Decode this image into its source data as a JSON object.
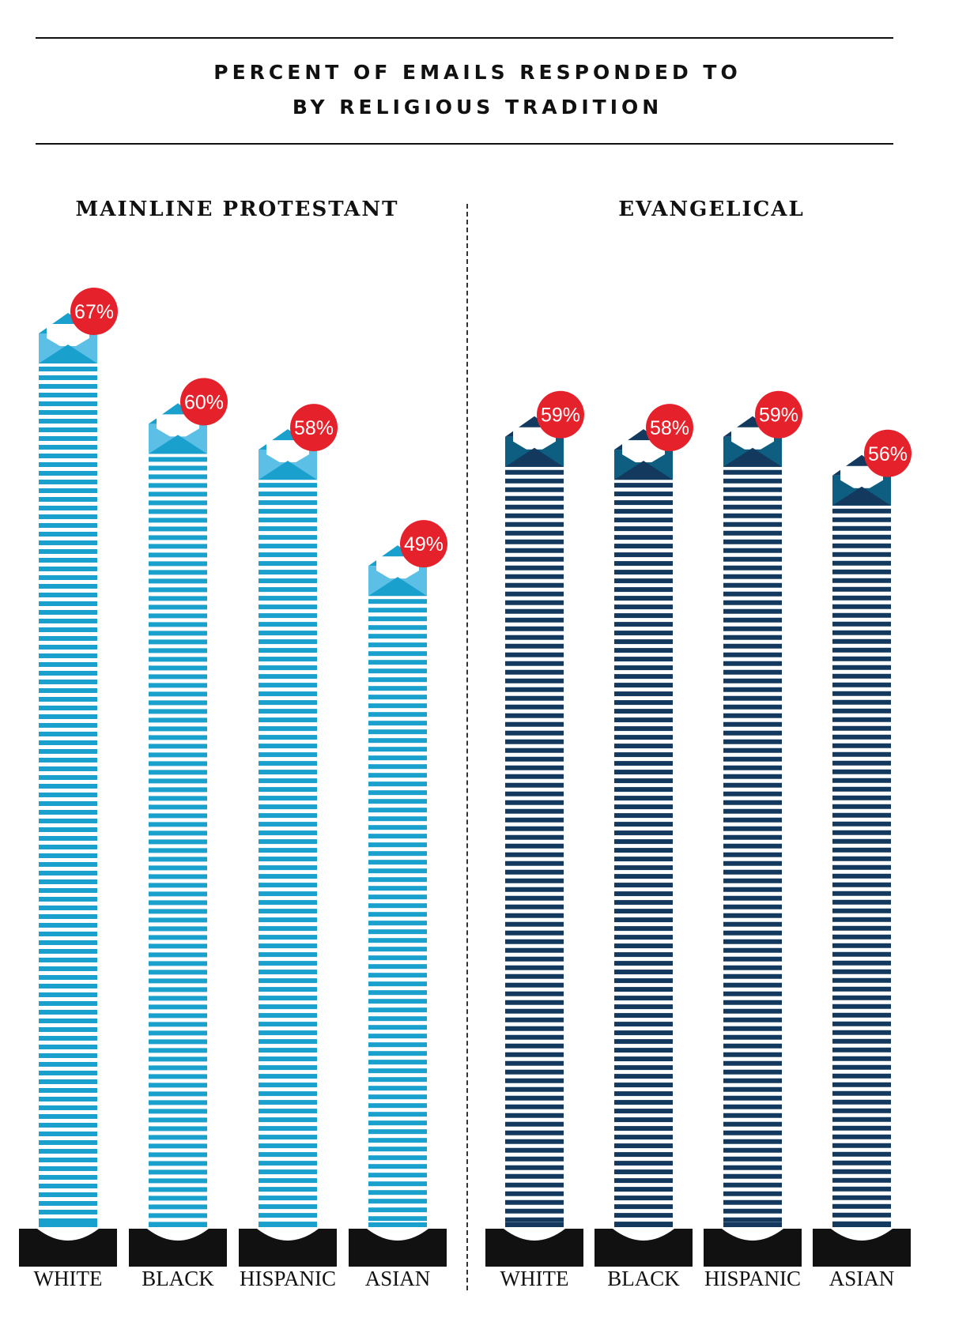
{
  "title": {
    "line1": "PERCENT OF EMAILS RESPONDED TO",
    "line2": "BY RELIGIOUS TRADITION"
  },
  "chart_data": {
    "type": "bar",
    "title": "PERCENT OF EMAILS RESPONDED TO BY RELIGIOUS TRADITION",
    "categories": [
      "WHITE",
      "BLACK",
      "HISPANIC",
      "ASIAN"
    ],
    "unit": "%",
    "ylim": [
      0,
      100
    ],
    "grid": false,
    "groups": [
      {
        "name": "MAINLINE PROTESTANT",
        "values": [
          67,
          60,
          58,
          49
        ],
        "labels": [
          "67%",
          "60%",
          "58%",
          "49%"
        ],
        "color": "#1aa0cc",
        "envelope_color": "#5bbfe6"
      },
      {
        "name": "EVANGELICAL",
        "values": [
          59,
          58,
          59,
          56
        ],
        "labels": [
          "59%",
          "58%",
          "59%",
          "56%"
        ],
        "color": "#133a5e",
        "envelope_color": "#0e5e82"
      }
    ],
    "badge_color": "#e5222b"
  }
}
